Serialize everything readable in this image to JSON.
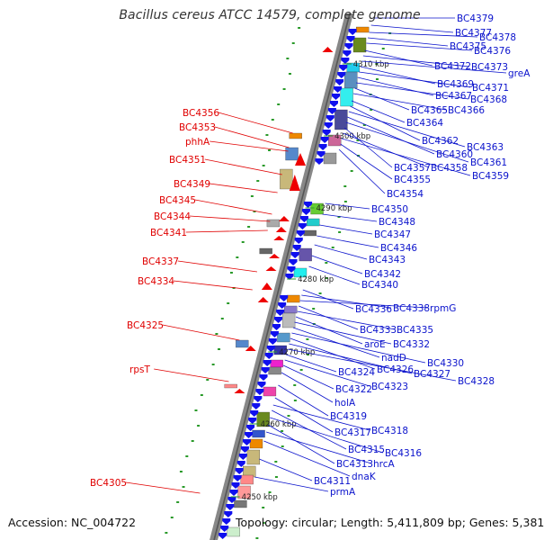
{
  "title": "Bacillus cereus ATCC 14579, complete genome",
  "footer": {
    "accession": "Accession: NC_004722",
    "summary": "Topology: circular; Length: 5,411,809 bp; Genes: 5,381"
  },
  "colors": {
    "forward_gene": "#1010ee",
    "reverse_gene": "#ee0000",
    "right_label": "#0a12cc",
    "left_label": "#e00000",
    "backbone": "#888888"
  },
  "ruler": [
    "4250 kbp",
    "4260 kbp",
    "4270 kbp",
    "4280 kbp",
    "4290 kbp",
    "4300 kbp",
    "4310 kbp"
  ],
  "right_labels": [
    "BC4379",
    "BC4377",
    "BC4378",
    "BC4375",
    "BC4376",
    "BC4372",
    "BC4373",
    "greA",
    "BC4369",
    "BC4371",
    "BC4367",
    "BC4368",
    "BC4365",
    "BC4366",
    "BC4364",
    "BC4362",
    "BC4363",
    "BC4360",
    "BC4361",
    "BC4357",
    "BC4358",
    "BC4359",
    "BC4355",
    "BC4354",
    "BC4350",
    "BC4348",
    "BC4347",
    "BC4346",
    "BC4343",
    "BC4342",
    "BC4340",
    "BC4336",
    "BC4338",
    "rpmG",
    "BC4333",
    "BC4335",
    "aroE",
    "BC4332",
    "nadD",
    "BC4330",
    "BC4326",
    "BC4327",
    "BC4328",
    "BC4324",
    "BC4323",
    "BC4322",
    "holA",
    "BC4319",
    "BC4317",
    "BC4318",
    "BC4315",
    "BC4316",
    "BC4313",
    "hrcA",
    "dnaK",
    "BC4311",
    "prmA"
  ],
  "left_labels": [
    "BC4356",
    "BC4353",
    "phhA",
    "BC4351",
    "BC4349",
    "BC4345",
    "BC4344",
    "BC4341",
    "BC4337",
    "BC4334",
    "BC4325",
    "rpsT",
    "BC4305"
  ]
}
